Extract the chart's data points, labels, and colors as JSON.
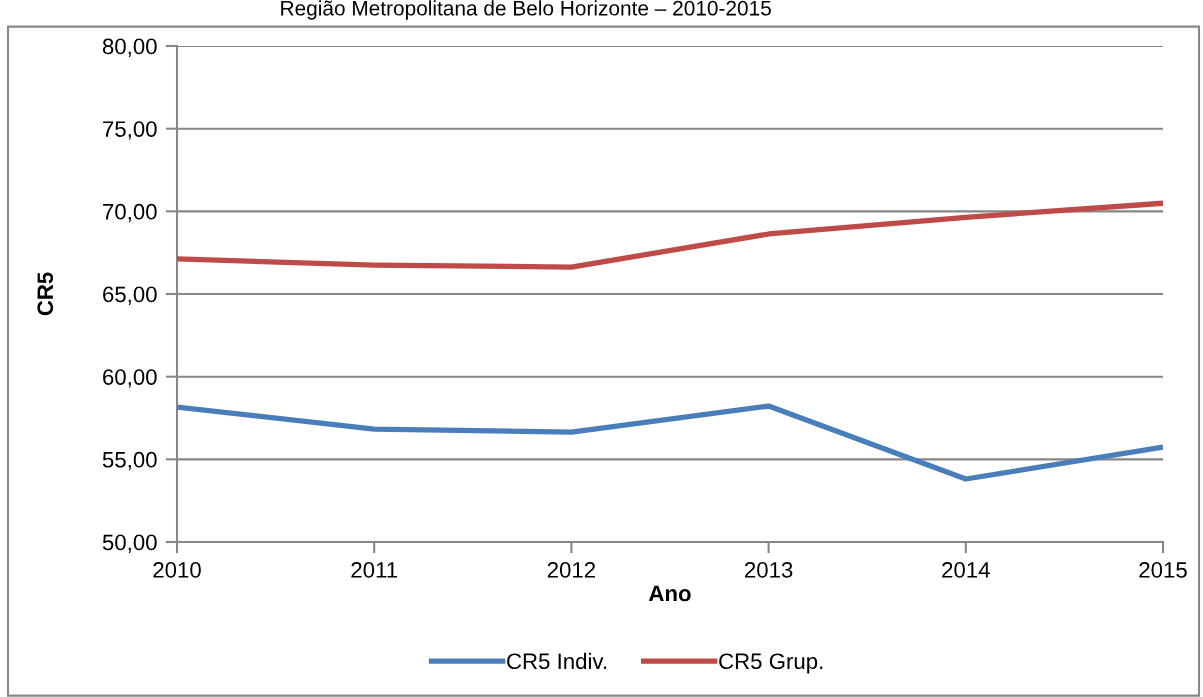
{
  "chart_data": {
    "type": "line",
    "title": "Região Metropolitana de Belo Horizonte – 2010-2015",
    "xlabel": "Ano",
    "ylabel": "CR5",
    "categories": [
      "2010",
      "2011",
      "2012",
      "2013",
      "2014",
      "2015"
    ],
    "series": [
      {
        "name": "CR5 Indiv.",
        "color": "#4a7ebb",
        "values": [
          58.16,
          56.83,
          56.65,
          58.22,
          53.81,
          55.74
        ]
      },
      {
        "name": "CR5 Grup.",
        "color": "#be4b48",
        "values": [
          67.12,
          66.75,
          66.63,
          68.63,
          69.64,
          70.49
        ]
      }
    ],
    "ylim": [
      50,
      80
    ],
    "yticks": [
      {
        "value": 50,
        "label": "50,00"
      },
      {
        "value": 55,
        "label": "55,00"
      },
      {
        "value": 60,
        "label": "60,00"
      },
      {
        "value": 65,
        "label": "65,00"
      },
      {
        "value": 70,
        "label": "70,00"
      },
      {
        "value": 75,
        "label": "75,00"
      },
      {
        "value": 80,
        "label": "80,00"
      }
    ],
    "grid": "y",
    "legend": "bottom",
    "marker": "none",
    "line_style": "solid"
  }
}
